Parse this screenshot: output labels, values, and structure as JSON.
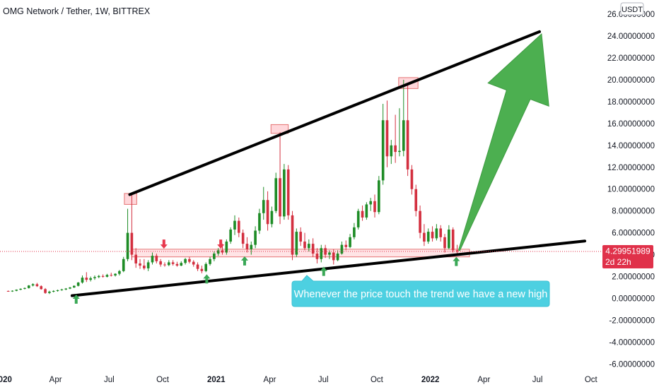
{
  "chart_data": {
    "type": "candlestick",
    "title": "OMG Network / Tether, 1W, BITTREX",
    "currency": "USDT",
    "y_axis": {
      "ticks": [
        26,
        24,
        22,
        20,
        18,
        16,
        14,
        12,
        10,
        8,
        6,
        4,
        2,
        0,
        -2,
        -4,
        -6
      ],
      "tick_labels": [
        "26.00000000",
        "24.00000000",
        "22.00000000",
        "20.00000000",
        "18.00000000",
        "16.00000000",
        "14.00000000",
        "12.00000000",
        "10.00000000",
        "8.00000000",
        "6.00000000",
        "4.00000000",
        "2.00000000",
        "0.00000000",
        "-2.00000000",
        "-4.00000000",
        "-6.00000000"
      ],
      "range": [
        -6.3,
        27.3
      ]
    },
    "x_axis": {
      "labels": [
        "2020",
        "Apr",
        "Jul",
        "Oct",
        "2021",
        "Apr",
        "Jul",
        "Oct",
        "2022",
        "Apr",
        "Jul",
        "Oct"
      ],
      "bold_labels": [
        "2020",
        "2021",
        "2022"
      ],
      "range_weeks": [
        -2,
        146
      ]
    },
    "last_price": {
      "value": 4.29951989,
      "label": "4.29951989",
      "countdown": "2d 22h"
    },
    "candles": [
      {
        "w": 0,
        "o": 0.68,
        "h": 0.72,
        "l": 0.62,
        "c": 0.66
      },
      {
        "w": 1,
        "o": 0.66,
        "h": 0.74,
        "l": 0.6,
        "c": 0.7
      },
      {
        "w": 2,
        "o": 0.7,
        "h": 0.82,
        "l": 0.66,
        "c": 0.8
      },
      {
        "w": 3,
        "o": 0.8,
        "h": 0.92,
        "l": 0.75,
        "c": 0.88
      },
      {
        "w": 4,
        "o": 0.88,
        "h": 1.0,
        "l": 0.82,
        "c": 0.95
      },
      {
        "w": 5,
        "o": 0.95,
        "h": 1.22,
        "l": 0.9,
        "c": 1.18
      },
      {
        "w": 6,
        "o": 1.18,
        "h": 1.38,
        "l": 1.1,
        "c": 1.3
      },
      {
        "w": 7,
        "o": 1.3,
        "h": 1.42,
        "l": 1.05,
        "c": 1.12
      },
      {
        "w": 8,
        "o": 1.12,
        "h": 1.2,
        "l": 0.8,
        "c": 0.85
      },
      {
        "w": 9,
        "o": 0.85,
        "h": 0.95,
        "l": 0.42,
        "c": 0.5
      },
      {
        "w": 10,
        "o": 0.5,
        "h": 0.7,
        "l": 0.4,
        "c": 0.62
      },
      {
        "w": 11,
        "o": 0.62,
        "h": 0.75,
        "l": 0.55,
        "c": 0.68
      },
      {
        "w": 12,
        "o": 0.68,
        "h": 0.8,
        "l": 0.62,
        "c": 0.75
      },
      {
        "w": 13,
        "o": 0.75,
        "h": 0.88,
        "l": 0.7,
        "c": 0.82
      },
      {
        "w": 14,
        "o": 0.82,
        "h": 0.95,
        "l": 0.75,
        "c": 0.9
      },
      {
        "w": 15,
        "o": 0.9,
        "h": 1.05,
        "l": 0.85,
        "c": 1.0
      },
      {
        "w": 16,
        "o": 1.0,
        "h": 1.2,
        "l": 0.95,
        "c": 1.15
      },
      {
        "w": 17,
        "o": 1.15,
        "h": 1.5,
        "l": 1.1,
        "c": 1.45
      },
      {
        "w": 18,
        "o": 1.45,
        "h": 2.1,
        "l": 1.35,
        "c": 1.9
      },
      {
        "w": 19,
        "o": 1.9,
        "h": 2.4,
        "l": 1.5,
        "c": 1.7
      },
      {
        "w": 20,
        "o": 1.7,
        "h": 2.0,
        "l": 1.55,
        "c": 1.85
      },
      {
        "w": 21,
        "o": 1.85,
        "h": 2.1,
        "l": 1.7,
        "c": 1.95
      },
      {
        "w": 22,
        "o": 1.95,
        "h": 2.15,
        "l": 1.85,
        "c": 2.05
      },
      {
        "w": 23,
        "o": 2.05,
        "h": 2.2,
        "l": 1.9,
        "c": 1.98
      },
      {
        "w": 24,
        "o": 1.98,
        "h": 2.25,
        "l": 1.92,
        "c": 2.15
      },
      {
        "w": 25,
        "o": 2.15,
        "h": 2.35,
        "l": 2.0,
        "c": 2.1
      },
      {
        "w": 26,
        "o": 2.1,
        "h": 2.3,
        "l": 2.0,
        "c": 2.25
      },
      {
        "w": 27,
        "o": 2.25,
        "h": 2.6,
        "l": 2.1,
        "c": 2.5
      },
      {
        "w": 28,
        "o": 2.5,
        "h": 3.8,
        "l": 2.4,
        "c": 3.6
      },
      {
        "w": 29,
        "o": 3.6,
        "h": 8.2,
        "l": 3.4,
        "c": 6.0
      },
      {
        "w": 30,
        "o": 6.0,
        "h": 9.5,
        "l": 3.5,
        "c": 4.0
      },
      {
        "w": 31,
        "o": 4.0,
        "h": 4.6,
        "l": 2.8,
        "c": 3.2
      },
      {
        "w": 32,
        "o": 3.2,
        "h": 3.6,
        "l": 2.7,
        "c": 3.0
      },
      {
        "w": 33,
        "o": 3.0,
        "h": 3.6,
        "l": 2.6,
        "c": 2.75
      },
      {
        "w": 34,
        "o": 2.75,
        "h": 3.5,
        "l": 2.5,
        "c": 3.3
      },
      {
        "w": 35,
        "o": 3.3,
        "h": 4.2,
        "l": 3.1,
        "c": 3.9
      },
      {
        "w": 36,
        "o": 3.9,
        "h": 4.1,
        "l": 3.2,
        "c": 3.4
      },
      {
        "w": 37,
        "o": 3.4,
        "h": 3.6,
        "l": 2.9,
        "c": 3.1
      },
      {
        "w": 38,
        "o": 3.1,
        "h": 3.3,
        "l": 2.9,
        "c": 3.05
      },
      {
        "w": 39,
        "o": 3.05,
        "h": 3.5,
        "l": 2.95,
        "c": 3.3
      },
      {
        "w": 40,
        "o": 3.3,
        "h": 3.5,
        "l": 3.0,
        "c": 3.15
      },
      {
        "w": 41,
        "o": 3.15,
        "h": 3.35,
        "l": 2.9,
        "c": 3.0
      },
      {
        "w": 42,
        "o": 3.0,
        "h": 3.4,
        "l": 2.95,
        "c": 3.25
      },
      {
        "w": 43,
        "o": 3.25,
        "h": 3.7,
        "l": 3.1,
        "c": 3.6
      },
      {
        "w": 44,
        "o": 3.6,
        "h": 3.8,
        "l": 3.2,
        "c": 3.35
      },
      {
        "w": 45,
        "o": 3.35,
        "h": 3.5,
        "l": 2.9,
        "c": 3.1
      },
      {
        "w": 46,
        "o": 3.1,
        "h": 3.3,
        "l": 2.5,
        "c": 2.7
      },
      {
        "w": 47,
        "o": 2.7,
        "h": 3.0,
        "l": 2.3,
        "c": 2.5
      },
      {
        "w": 48,
        "o": 2.5,
        "h": 3.3,
        "l": 2.4,
        "c": 3.15
      },
      {
        "w": 49,
        "o": 3.15,
        "h": 3.8,
        "l": 3.0,
        "c": 3.6
      },
      {
        "w": 50,
        "o": 3.6,
        "h": 4.3,
        "l": 3.4,
        "c": 4.1
      },
      {
        "w": 51,
        "o": 4.1,
        "h": 4.6,
        "l": 3.9,
        "c": 4.4
      },
      {
        "w": 52,
        "o": 4.4,
        "h": 5.0,
        "l": 4.0,
        "c": 4.2
      },
      {
        "w": 53,
        "o": 4.2,
        "h": 5.4,
        "l": 4.0,
        "c": 5.2
      },
      {
        "w": 54,
        "o": 5.2,
        "h": 6.5,
        "l": 5.0,
        "c": 6.3
      },
      {
        "w": 55,
        "o": 6.3,
        "h": 7.6,
        "l": 5.8,
        "c": 7.1
      },
      {
        "w": 56,
        "o": 7.1,
        "h": 7.4,
        "l": 5.6,
        "c": 6.0
      },
      {
        "w": 57,
        "o": 6.0,
        "h": 6.3,
        "l": 4.6,
        "c": 5.0
      },
      {
        "w": 58,
        "o": 5.0,
        "h": 5.6,
        "l": 4.2,
        "c": 4.5
      },
      {
        "w": 59,
        "o": 4.5,
        "h": 5.2,
        "l": 4.0,
        "c": 4.9
      },
      {
        "w": 60,
        "o": 4.9,
        "h": 6.6,
        "l": 4.6,
        "c": 6.2
      },
      {
        "w": 61,
        "o": 6.2,
        "h": 8.2,
        "l": 5.9,
        "c": 7.8
      },
      {
        "w": 62,
        "o": 7.8,
        "h": 10.2,
        "l": 7.2,
        "c": 9.0
      },
      {
        "w": 63,
        "o": 9.0,
        "h": 9.8,
        "l": 6.2,
        "c": 6.8
      },
      {
        "w": 64,
        "o": 6.8,
        "h": 8.4,
        "l": 6.5,
        "c": 8.0
      },
      {
        "w": 65,
        "o": 8.0,
        "h": 11.5,
        "l": 7.8,
        "c": 11.0
      },
      {
        "w": 66,
        "o": 11.0,
        "h": 15.2,
        "l": 6.8,
        "c": 7.5
      },
      {
        "w": 67,
        "o": 7.5,
        "h": 12.3,
        "l": 7.2,
        "c": 11.8
      },
      {
        "w": 68,
        "o": 11.8,
        "h": 12.2,
        "l": 7.2,
        "c": 7.6
      },
      {
        "w": 69,
        "o": 7.6,
        "h": 8.0,
        "l": 3.5,
        "c": 4.0
      },
      {
        "w": 70,
        "o": 4.0,
        "h": 6.4,
        "l": 3.8,
        "c": 6.1
      },
      {
        "w": 71,
        "o": 6.1,
        "h": 6.5,
        "l": 4.8,
        "c": 5.2
      },
      {
        "w": 72,
        "o": 5.2,
        "h": 6.0,
        "l": 4.4,
        "c": 4.6
      },
      {
        "w": 73,
        "o": 4.6,
        "h": 5.4,
        "l": 4.3,
        "c": 5.0
      },
      {
        "w": 74,
        "o": 5.0,
        "h": 5.5,
        "l": 3.8,
        "c": 4.1
      },
      {
        "w": 75,
        "o": 4.1,
        "h": 4.6,
        "l": 3.2,
        "c": 3.6
      },
      {
        "w": 76,
        "o": 3.6,
        "h": 4.9,
        "l": 3.3,
        "c": 4.6
      },
      {
        "w": 77,
        "o": 4.6,
        "h": 4.9,
        "l": 3.7,
        "c": 4.0
      },
      {
        "w": 78,
        "o": 4.0,
        "h": 4.4,
        "l": 3.6,
        "c": 4.2
      },
      {
        "w": 79,
        "o": 4.2,
        "h": 4.5,
        "l": 3.1,
        "c": 3.5
      },
      {
        "w": 80,
        "o": 3.5,
        "h": 4.4,
        "l": 3.4,
        "c": 4.1
      },
      {
        "w": 81,
        "o": 4.1,
        "h": 5.2,
        "l": 4.0,
        "c": 4.9
      },
      {
        "w": 82,
        "o": 4.9,
        "h": 5.3,
        "l": 4.4,
        "c": 4.7
      },
      {
        "w": 83,
        "o": 4.7,
        "h": 5.9,
        "l": 4.6,
        "c": 5.6
      },
      {
        "w": 84,
        "o": 5.6,
        "h": 6.9,
        "l": 5.4,
        "c": 6.5
      },
      {
        "w": 85,
        "o": 6.5,
        "h": 8.2,
        "l": 6.3,
        "c": 8.0
      },
      {
        "w": 86,
        "o": 8.0,
        "h": 8.5,
        "l": 7.1,
        "c": 7.4
      },
      {
        "w": 87,
        "o": 7.4,
        "h": 8.8,
        "l": 7.2,
        "c": 8.6
      },
      {
        "w": 88,
        "o": 8.6,
        "h": 9.2,
        "l": 8.0,
        "c": 8.9
      },
      {
        "w": 89,
        "o": 8.9,
        "h": 9.5,
        "l": 7.4,
        "c": 7.9
      },
      {
        "w": 90,
        "o": 7.9,
        "h": 11.2,
        "l": 7.7,
        "c": 10.8
      },
      {
        "w": 91,
        "o": 10.8,
        "h": 17.8,
        "l": 10.4,
        "c": 16.3
      },
      {
        "w": 92,
        "o": 16.3,
        "h": 18.1,
        "l": 12.0,
        "c": 13.0
      },
      {
        "w": 93,
        "o": 13.0,
        "h": 14.5,
        "l": 12.3,
        "c": 14.0
      },
      {
        "w": 94,
        "o": 14.0,
        "h": 16.8,
        "l": 12.4,
        "c": 13.4
      },
      {
        "w": 95,
        "o": 13.4,
        "h": 17.4,
        "l": 13.0,
        "c": 13.5
      },
      {
        "w": 96,
        "o": 13.5,
        "h": 20.0,
        "l": 13.0,
        "c": 16.3
      },
      {
        "w": 97,
        "o": 16.3,
        "h": 19.7,
        "l": 11.2,
        "c": 11.8
      },
      {
        "w": 98,
        "o": 11.8,
        "h": 12.2,
        "l": 9.5,
        "c": 10.0
      },
      {
        "w": 99,
        "o": 10.0,
        "h": 10.4,
        "l": 7.5,
        "c": 8.0
      },
      {
        "w": 100,
        "o": 8.0,
        "h": 8.5,
        "l": 5.5,
        "c": 6.0
      },
      {
        "w": 101,
        "o": 6.0,
        "h": 6.8,
        "l": 4.8,
        "c": 5.2
      },
      {
        "w": 102,
        "o": 5.2,
        "h": 6.4,
        "l": 5.0,
        "c": 6.1
      },
      {
        "w": 103,
        "o": 6.1,
        "h": 6.6,
        "l": 5.2,
        "c": 5.5
      },
      {
        "w": 104,
        "o": 5.5,
        "h": 6.8,
        "l": 5.3,
        "c": 6.4
      },
      {
        "w": 105,
        "o": 6.4,
        "h": 6.7,
        "l": 5.2,
        "c": 5.6
      },
      {
        "w": 106,
        "o": 5.6,
        "h": 5.9,
        "l": 4.2,
        "c": 4.6
      },
      {
        "w": 107,
        "o": 4.6,
        "h": 6.7,
        "l": 4.5,
        "c": 6.3
      },
      {
        "w": 108,
        "o": 6.3,
        "h": 6.5,
        "l": 4.2,
        "c": 4.4
      },
      {
        "w": 109,
        "o": 4.4,
        "h": 4.9,
        "l": 4.1,
        "c": 4.3
      }
    ],
    "trendlines": [
      {
        "name": "upper",
        "x1": 29.5,
        "y1": 9.5,
        "x2": 129,
        "y2": 24.4
      },
      {
        "name": "lower",
        "x1": 15.5,
        "y1": 0.25,
        "x2": 140,
        "y2": 5.25
      }
    ],
    "zones": [
      {
        "kind": "peak",
        "x1": 28.2,
        "x2": 31.2,
        "y1": 8.6,
        "y2": 9.6
      },
      {
        "kind": "peak",
        "x1": 63.8,
        "x2": 68,
        "y1": 15.1,
        "y2": 15.9
      },
      {
        "kind": "peak",
        "x1": 94.8,
        "x2": 99.5,
        "y1": 19.2,
        "y2": 20.2
      },
      {
        "kind": "band",
        "x1": 30,
        "x2": 112,
        "y1": 3.8,
        "y2": 4.5
      }
    ],
    "markers": [
      {
        "kind": "up",
        "x": 16.5,
        "y": -0.1
      },
      {
        "kind": "up",
        "x": 48.2,
        "y": 1.75
      },
      {
        "kind": "up",
        "x": 57.4,
        "y": 3.4
      },
      {
        "kind": "up",
        "x": 76.6,
        "y": 2.45
      },
      {
        "kind": "up",
        "x": 108.8,
        "y": 3.35
      },
      {
        "kind": "down",
        "x": 37.8,
        "y": 5.0
      },
      {
        "kind": "down",
        "x": 51.6,
        "y": 5.0
      }
    ],
    "arrow": {
      "x1": 109.5,
      "y1": 4.4,
      "x2": 129.5,
      "y2": 24.2
    },
    "annotation": {
      "text": "Whenever the price touch the trend we have a new high",
      "pointer_x": 72.5,
      "pointer_y": 2.1
    },
    "colors": {
      "up": "#26a69a",
      "candle_up": "#1e8c26",
      "candle_down": "#d32f3f",
      "trendline": "#000000",
      "arrow": "#4caf50",
      "arrow_stroke": "#3d9b40",
      "zone_fill": "#ffcdd2",
      "zone_stroke": "#e57373",
      "annotation_fill": "#4dd0e1",
      "annotation_text": "#ffffff",
      "price_tag": "#e0314a",
      "up_marker": "#3aa856",
      "down_marker": "#e8394e",
      "axis_text": "#131722"
    }
  }
}
